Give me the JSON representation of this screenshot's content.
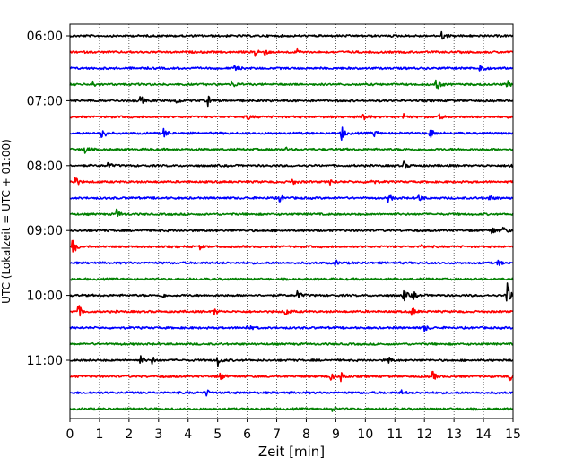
{
  "chart_data": {
    "type": "line",
    "title": "",
    "xlabel": "Zeit  [min]",
    "ylabel": "UTC (Lokalzeit = UTC + 01:00)",
    "xlim": [
      0,
      15
    ],
    "x_ticks": [
      0,
      1,
      2,
      3,
      4,
      5,
      6,
      7,
      8,
      9,
      10,
      11,
      12,
      13,
      14,
      15
    ],
    "y_tick_labels": [
      "06:00",
      "07:00",
      "08:00",
      "09:00",
      "10:00",
      "11:00"
    ],
    "grid": "x",
    "trace_colors": [
      "#000000",
      "#ff0000",
      "#0000ff",
      "#008000"
    ],
    "series": [
      {
        "time": "06:00",
        "color": "#000000",
        "events": [
          {
            "x": 12.6,
            "amp": 0.45
          }
        ]
      },
      {
        "time": "06:15",
        "color": "#ff0000",
        "events": [
          {
            "x": 6.3,
            "amp": 0.5
          },
          {
            "x": 6.6,
            "amp": 0.3
          },
          {
            "x": 7.7,
            "amp": 0.25
          }
        ]
      },
      {
        "time": "06:30",
        "color": "#0000ff",
        "events": [
          {
            "x": 5.6,
            "amp": 0.3
          },
          {
            "x": 13.9,
            "amp": 0.55
          }
        ]
      },
      {
        "time": "06:45",
        "color": "#008000",
        "events": [
          {
            "x": 0.8,
            "amp": 0.35
          },
          {
            "x": 5.5,
            "amp": 0.4
          },
          {
            "x": 12.4,
            "amp": 0.85
          },
          {
            "x": 14.8,
            "amp": 0.45
          }
        ]
      },
      {
        "time": "07:00",
        "color": "#000000",
        "events": [
          {
            "x": 2.4,
            "amp": 0.5
          },
          {
            "x": 4.7,
            "amp": 0.55
          },
          {
            "x": 3.6,
            "amp": 0.3
          }
        ]
      },
      {
        "time": "07:15",
        "color": "#ff0000",
        "events": [
          {
            "x": 6.0,
            "amp": 0.35
          },
          {
            "x": 9.9,
            "amp": 0.65
          },
          {
            "x": 11.3,
            "amp": 0.3
          },
          {
            "x": 12.5,
            "amp": 0.3
          }
        ]
      },
      {
        "time": "07:30",
        "color": "#0000ff",
        "events": [
          {
            "x": 1.1,
            "amp": 0.7
          },
          {
            "x": 3.2,
            "amp": 0.45
          },
          {
            "x": 9.2,
            "amp": 0.75
          },
          {
            "x": 10.3,
            "amp": 0.35
          },
          {
            "x": 12.2,
            "amp": 0.55
          }
        ]
      },
      {
        "time": "07:45",
        "color": "#008000",
        "events": [
          {
            "x": 0.5,
            "amp": 0.5
          },
          {
            "x": 7.3,
            "amp": 0.2
          }
        ]
      },
      {
        "time": "08:00",
        "color": "#000000",
        "events": [
          {
            "x": 11.3,
            "amp": 0.45
          },
          {
            "x": 1.3,
            "amp": 0.3
          },
          {
            "x": 14.9,
            "amp": 0.35
          }
        ]
      },
      {
        "time": "08:15",
        "color": "#ff0000",
        "events": [
          {
            "x": 0.15,
            "amp": 0.85
          },
          {
            "x": 7.5,
            "amp": 0.35
          },
          {
            "x": 10.2,
            "amp": 0.45
          },
          {
            "x": 8.8,
            "amp": 0.3
          }
        ]
      },
      {
        "time": "08:30",
        "color": "#0000ff",
        "events": [
          {
            "x": 7.1,
            "amp": 0.4
          },
          {
            "x": 10.8,
            "amp": 0.4
          },
          {
            "x": 11.8,
            "amp": 0.45
          },
          {
            "x": 14.2,
            "amp": 0.3
          }
        ]
      },
      {
        "time": "08:45",
        "color": "#008000",
        "events": [
          {
            "x": 1.6,
            "amp": 0.5
          }
        ]
      },
      {
        "time": "09:00",
        "color": "#000000",
        "events": [
          {
            "x": 14.3,
            "amp": 0.45
          },
          {
            "x": 14.7,
            "amp": 0.35
          }
        ]
      },
      {
        "time": "09:15",
        "color": "#ff0000",
        "events": [
          {
            "x": 0.1,
            "amp": 0.9
          },
          {
            "x": 4.4,
            "amp": 0.25
          },
          {
            "x": 11.9,
            "amp": 0.25
          }
        ]
      },
      {
        "time": "09:30",
        "color": "#0000ff",
        "events": [
          {
            "x": 9.0,
            "amp": 0.25
          },
          {
            "x": 14.5,
            "amp": 0.3
          }
        ]
      },
      {
        "time": "09:45",
        "color": "#008000",
        "events": []
      },
      {
        "time": "10:00",
        "color": "#000000",
        "events": [
          {
            "x": 7.7,
            "amp": 0.5
          },
          {
            "x": 11.3,
            "amp": 0.7
          },
          {
            "x": 11.6,
            "amp": 0.55
          },
          {
            "x": 14.8,
            "amp": 1.6
          },
          {
            "x": 3.1,
            "amp": 0.3
          }
        ]
      },
      {
        "time": "10:15",
        "color": "#ff0000",
        "events": [
          {
            "x": 0.3,
            "amp": 0.65
          },
          {
            "x": 4.9,
            "amp": 0.35
          },
          {
            "x": 7.3,
            "amp": 0.45
          },
          {
            "x": 11.6,
            "amp": 0.4
          }
        ]
      },
      {
        "time": "10:30",
        "color": "#0000ff",
        "events": [
          {
            "x": 6.0,
            "amp": 0.45
          },
          {
            "x": 12.0,
            "amp": 0.4
          }
        ]
      },
      {
        "time": "10:45",
        "color": "#008000",
        "events": []
      },
      {
        "time": "11:00",
        "color": "#000000",
        "events": [
          {
            "x": 2.4,
            "amp": 0.45
          },
          {
            "x": 2.8,
            "amp": 0.4
          },
          {
            "x": 5.0,
            "amp": 0.65
          },
          {
            "x": 10.8,
            "amp": 0.35
          }
        ]
      },
      {
        "time": "11:15",
        "color": "#ff0000",
        "events": [
          {
            "x": 5.1,
            "amp": 0.4
          },
          {
            "x": 8.8,
            "amp": 0.55
          },
          {
            "x": 9.2,
            "amp": 0.5
          },
          {
            "x": 12.3,
            "amp": 0.45
          },
          {
            "x": 14.9,
            "amp": 0.4
          }
        ]
      },
      {
        "time": "11:30",
        "color": "#0000ff",
        "events": [
          {
            "x": 4.6,
            "amp": 0.4
          },
          {
            "x": 11.2,
            "amp": 0.3
          }
        ]
      },
      {
        "time": "11:45",
        "color": "#008000",
        "events": [
          {
            "x": 8.9,
            "amp": 0.3
          }
        ]
      }
    ]
  }
}
